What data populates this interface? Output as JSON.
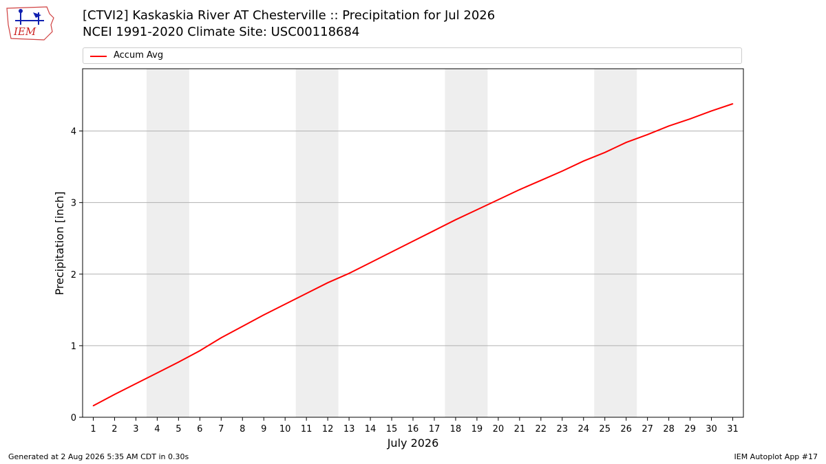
{
  "header": {
    "title_line1": "[CTVI2] Kaskaskia River  AT Chesterville :: Precipitation for Jul 2026",
    "title_line2": "NCEI 1991-2020 Climate Site: USC00118684",
    "logo_text": "IEM"
  },
  "footer": {
    "generated": "Generated at 2 Aug 2026 5:35 AM CDT in 0.30s",
    "app": "IEM Autoplot App #17"
  },
  "colors": {
    "line": "#ff0000",
    "weekend_band": "#eeeeee",
    "grid": "#b0b0b0"
  },
  "chart_data": {
    "type": "line",
    "xlabel": "July 2026",
    "ylabel": "Precipitation [inch]",
    "xlim": [
      0.5,
      31.5
    ],
    "ylim": [
      0,
      4.87
    ],
    "yticks": [
      0,
      1,
      2,
      3,
      4
    ],
    "grid": "horizontal",
    "legend_position": "top",
    "shaded_days": [
      [
        4,
        5
      ],
      [
        11,
        12
      ],
      [
        18,
        19
      ],
      [
        25,
        26
      ]
    ],
    "series": [
      {
        "name": "Accum Avg",
        "x": [
          1,
          2,
          3,
          4,
          5,
          6,
          7,
          8,
          9,
          10,
          11,
          12,
          13,
          14,
          15,
          16,
          17,
          18,
          19,
          20,
          21,
          22,
          23,
          24,
          25,
          26,
          27,
          28,
          29,
          30,
          31
        ],
        "values": [
          0.16,
          0.32,
          0.47,
          0.62,
          0.77,
          0.93,
          1.11,
          1.27,
          1.43,
          1.58,
          1.73,
          1.88,
          2.01,
          2.16,
          2.31,
          2.46,
          2.61,
          2.76,
          2.9,
          3.04,
          3.18,
          3.31,
          3.44,
          3.58,
          3.7,
          3.84,
          3.95,
          4.07,
          4.17,
          4.28,
          4.38
        ]
      }
    ]
  }
}
